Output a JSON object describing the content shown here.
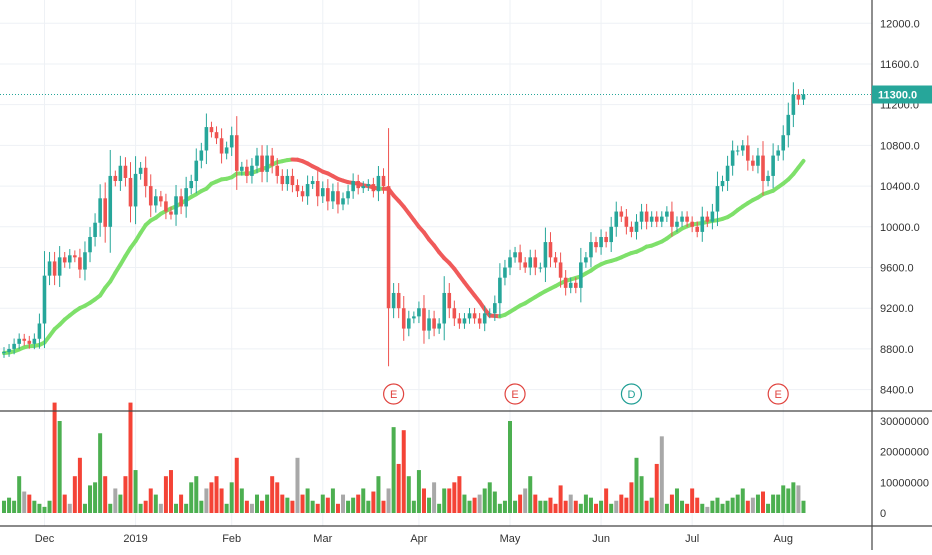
{
  "chart_data": {
    "type": "candlestick",
    "price_axis": {
      "ticks": [
        "12000.0",
        "11600.0",
        "11200.0",
        "10800.0",
        "10400.0",
        "10000.0",
        "9600.0",
        "9200.0",
        "8800.0",
        "8400.0"
      ],
      "range": [
        8200,
        12150
      ],
      "last_price_label": "11300.0",
      "last_price": 11300
    },
    "volume_axis": {
      "ticks": [
        "30000000",
        "20000000",
        "10000000",
        "0"
      ],
      "range": [
        0,
        30000000
      ]
    },
    "time_axis": {
      "labels": [
        "Dec",
        "2019",
        "Feb",
        "Mar",
        "Apr",
        "May",
        "Jun",
        "Jul",
        "Aug"
      ],
      "label_bar_index": [
        8,
        26,
        45,
        63,
        82,
        100,
        118,
        136,
        154
      ]
    },
    "events": [
      {
        "letter": "E",
        "bar": 77,
        "kind": "earnings"
      },
      {
        "letter": "E",
        "bar": 101,
        "kind": "earnings"
      },
      {
        "letter": "D",
        "bar": 124,
        "kind": "dividend"
      },
      {
        "letter": "E",
        "bar": 153,
        "kind": "earnings"
      }
    ],
    "bars": {
      "open": [
        8760,
        8770,
        8800,
        8850,
        8900,
        8880,
        8850,
        8900,
        9050,
        9520,
        9660,
        9520,
        9700,
        9650,
        9720,
        9700,
        9580,
        9750,
        9900,
        10040,
        10280,
        10000,
        10500,
        10450,
        10600,
        10480,
        10200,
        10520,
        10580,
        10400,
        10210,
        10300,
        10250,
        10150,
        10120,
        10300,
        10200,
        10380,
        10450,
        10650,
        10750,
        10980,
        10930,
        10870,
        10720,
        10780,
        10900,
        10550,
        10590,
        10500,
        10600,
        10700,
        10540,
        10700,
        10600,
        10500,
        10420,
        10500,
        10410,
        10350,
        10300,
        10420,
        10450,
        10300,
        10380,
        10250,
        10350,
        10220,
        10280,
        10350,
        10450,
        10380,
        10400,
        10420,
        10350,
        10500,
        10400,
        9200,
        9350,
        9200,
        9000,
        9100,
        9120,
        9200,
        8980,
        9100,
        9000,
        9050,
        9350,
        9200,
        9100,
        9050,
        9100,
        9150,
        9100,
        9050,
        9150,
        9150,
        9250,
        9500,
        9600,
        9700,
        9750,
        9650,
        9600,
        9700,
        9600,
        9600,
        9850,
        9700,
        9650,
        9500,
        9400,
        9450,
        9400,
        9650,
        9700,
        9850,
        9800,
        9900,
        9850,
        10000,
        10150,
        10100,
        10000,
        9950,
        10050,
        10150,
        10050,
        10100,
        10050,
        10100,
        10150,
        10000,
        10050,
        10100,
        10050,
        10000,
        9950,
        10100,
        10050,
        10150,
        10400,
        10450,
        10600,
        10750,
        10750,
        10800,
        10650,
        10600,
        10700,
        10450,
        10500,
        10700,
        10750,
        10900,
        11100,
        11300,
        11250
      ]
    },
    "volume": {
      "values": [
        4,
        5,
        4,
        12,
        7,
        6,
        4,
        3,
        2,
        4,
        36,
        30,
        6,
        3,
        12,
        18,
        3,
        9,
        10,
        26,
        12,
        3,
        8,
        6,
        12,
        36,
        14,
        3,
        4,
        8,
        6,
        3,
        12,
        14,
        3,
        6,
        3,
        10,
        12,
        4,
        8,
        10,
        12,
        8,
        3,
        10,
        18,
        8,
        4,
        3,
        6,
        4,
        6,
        12,
        10,
        6,
        5,
        4,
        18,
        6,
        8,
        4,
        3,
        6,
        5,
        8,
        3,
        6,
        4,
        5,
        6,
        8,
        4,
        7,
        12,
        4,
        8,
        28,
        16,
        27,
        12,
        4,
        14,
        8,
        5,
        10,
        3,
        8,
        8,
        10,
        12,
        6,
        4,
        5,
        6,
        8,
        10,
        7,
        3,
        4,
        30,
        4,
        6,
        8,
        12,
        6,
        4,
        4,
        5,
        3,
        9,
        4,
        6,
        4,
        3,
        6,
        5,
        3,
        4,
        8,
        3,
        4,
        6,
        5,
        10,
        18,
        12,
        4,
        5,
        16,
        25,
        3,
        6,
        8,
        4,
        3,
        8,
        5,
        3,
        2,
        4,
        5,
        3,
        4,
        5,
        6,
        8,
        4,
        5,
        6,
        7,
        3,
        6,
        6,
        9,
        8,
        10,
        9,
        4
      ]
    }
  }
}
